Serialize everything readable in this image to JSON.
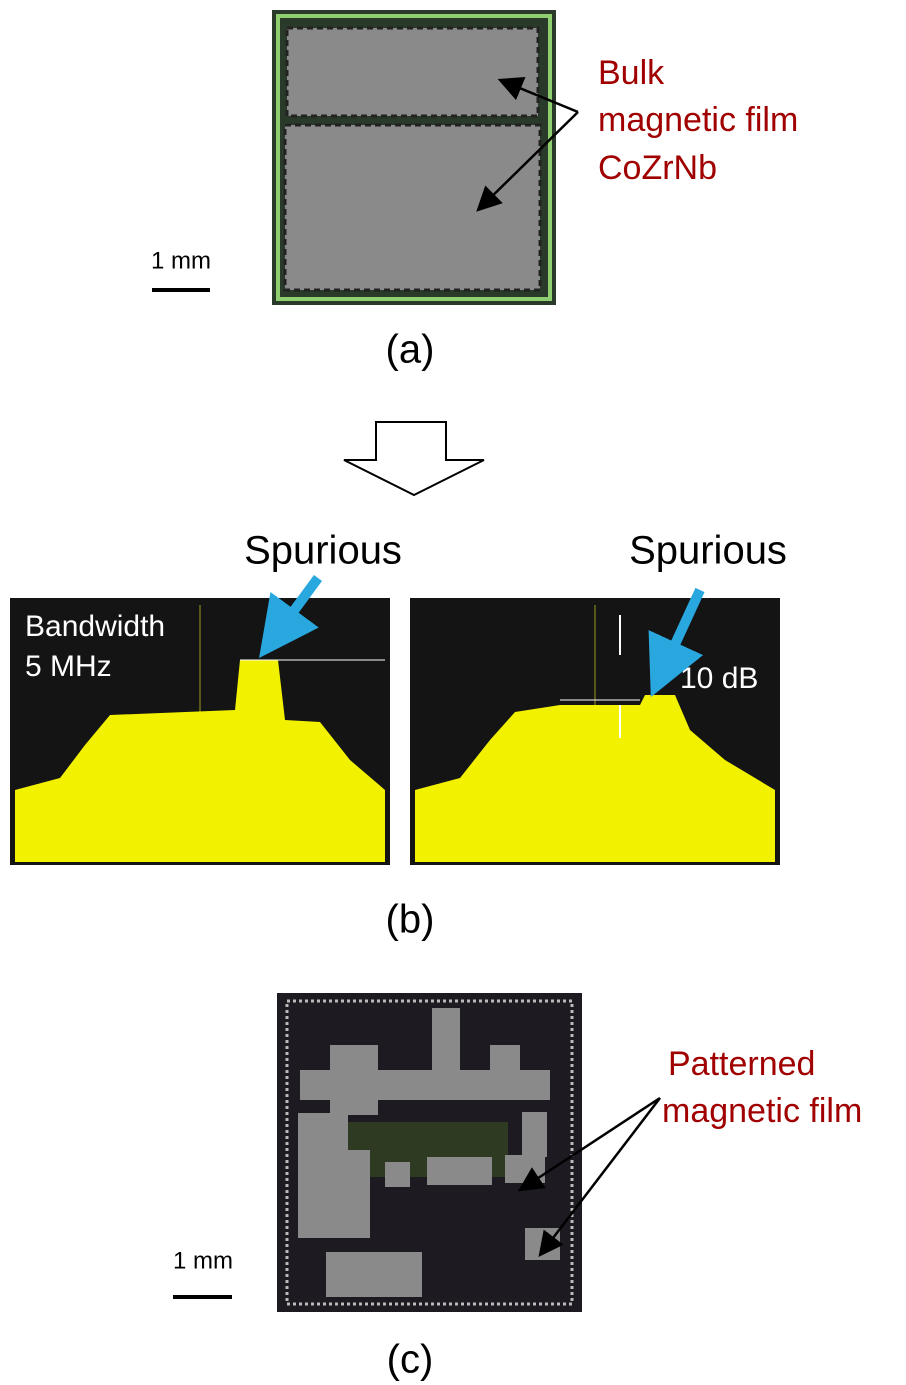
{
  "panels": [
    {
      "label": "(a)",
      "scale_bar": "1 mm",
      "annotation": [
        "Bulk",
        "magnetic film",
        "CoZrNb"
      ]
    },
    {
      "label": "(b)",
      "callouts": [
        "Spurious",
        "Spurious"
      ],
      "bandwidth": [
        "Bandwidth",
        "5 MHz"
      ],
      "level": "10 dB"
    },
    {
      "label": "(c)",
      "scale_bar": "1 mm",
      "annotation": [
        "Patterned",
        "magnetic film"
      ]
    }
  ]
}
